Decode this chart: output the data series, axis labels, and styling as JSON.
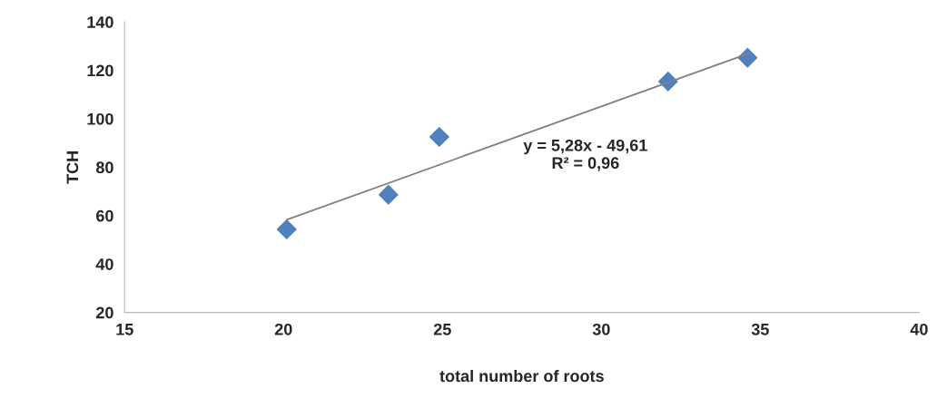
{
  "chart_data": {
    "type": "scatter",
    "xlabel": "total number of roots",
    "ylabel": "TCH",
    "series": [
      {
        "color": "#4f81bd",
        "marker": "diamond",
        "x": [
          20.1,
          23.3,
          24.9,
          32.1,
          34.6
        ],
        "values": [
          54.3,
          68.6,
          92.5,
          115.4,
          125.2
        ]
      },
      {
        "type": "line",
        "color": "#808080",
        "marker": "none",
        "x": [
          20.1,
          34.6
        ],
        "values": [
          58.3,
          126.8
        ]
      }
    ],
    "annotations": [
      "y = 5,28x - 49,61\nR² = 0,96"
    ],
    "xlim": [
      15,
      40
    ],
    "xticks": [
      15,
      20,
      25,
      30,
      35,
      40
    ],
    "ylim": [
      20,
      140
    ],
    "yticks": [
      20,
      40,
      60,
      80,
      100,
      120,
      140
    ],
    "grid": false,
    "legend": false
  }
}
